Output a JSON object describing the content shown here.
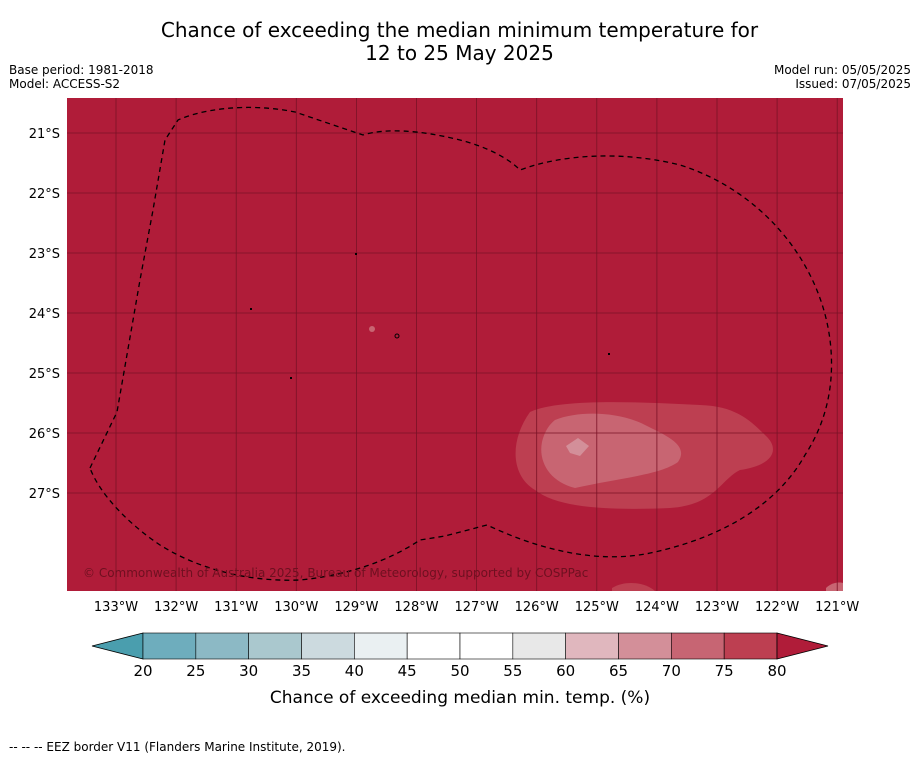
{
  "title": {
    "line1": "Chance of exceeding the median minimum temperature for",
    "line2": "12 to 25 May 2025"
  },
  "meta": {
    "base_period": "Base period: 1981-2018",
    "model": "Model: ACCESS-S2",
    "model_run": "Model run: 05/05/2025",
    "issued": "Issued: 07/05/2025"
  },
  "map": {
    "copyright": "© Commonwealth of Australia 2025, Bureau of Meteorology, supported by COSPPac",
    "background_color": "#b01c39",
    "eez_line_style": "dashed",
    "longitude_labels": [
      "133°W",
      "132°W",
      "131°W",
      "130°W",
      "129°W",
      "128°W",
      "127°W",
      "126°W",
      "125°W",
      "124°W",
      "123°W",
      "122°W",
      "121°W"
    ],
    "latitude_labels": [
      "21°S",
      "22°S",
      "23°S",
      "24°S",
      "25°S",
      "26°S",
      "27°S"
    ]
  },
  "colorbar": {
    "label": "Chance of exceeding median min. temp. (%)",
    "ticks": [
      "20",
      "25",
      "30",
      "35",
      "40",
      "45",
      "50",
      "55",
      "60",
      "65",
      "70",
      "75",
      "80"
    ],
    "colors": [
      "#6eadbd",
      "#8cb9c5",
      "#aac8ce",
      "#ccdadf",
      "#eaf0f2",
      "#ffffff",
      "#ffffff",
      "#e8e8e8",
      "#e0b7be",
      "#d38f99",
      "#c76573",
      "#bd3f51"
    ],
    "low_extend_color": "#4a9eae",
    "high_extend_color": "#b01c39"
  },
  "footer": {
    "legend_line": "--  --  -- EEZ border V11 (Flanders Marine Institute, 2019)."
  }
}
